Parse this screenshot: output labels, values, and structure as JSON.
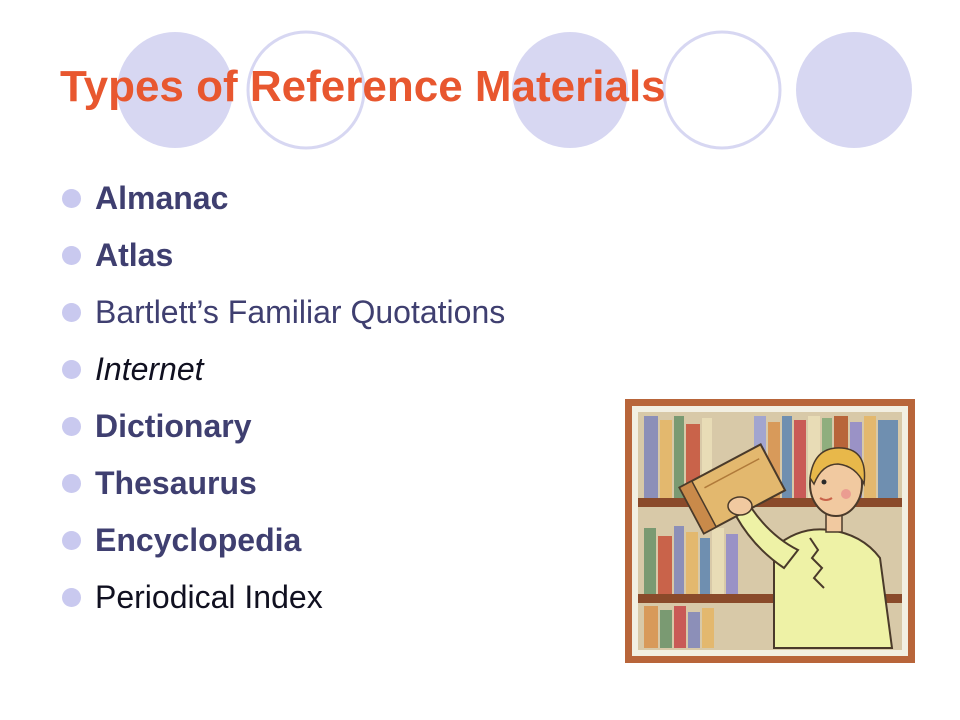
{
  "slide": {
    "title": "Types of Reference Materials",
    "bullets": [
      {
        "text": "Almanac"
      },
      {
        "text": "Atlas"
      },
      {
        "text": "Bartlett’s Familiar Quotations"
      },
      {
        "text": "Internet"
      },
      {
        "text": "Dictionary"
      },
      {
        "text": "Thesaurus"
      },
      {
        "text": "Encyclopedia"
      },
      {
        "text": "Periodical Index"
      }
    ],
    "colors": {
      "title": "#e8572f",
      "circle_fill": "#d7d7f2",
      "bullet": "#c9c9ef",
      "text": "#3f3f70"
    },
    "clipart_icon": "person-with-book-library-icon"
  }
}
